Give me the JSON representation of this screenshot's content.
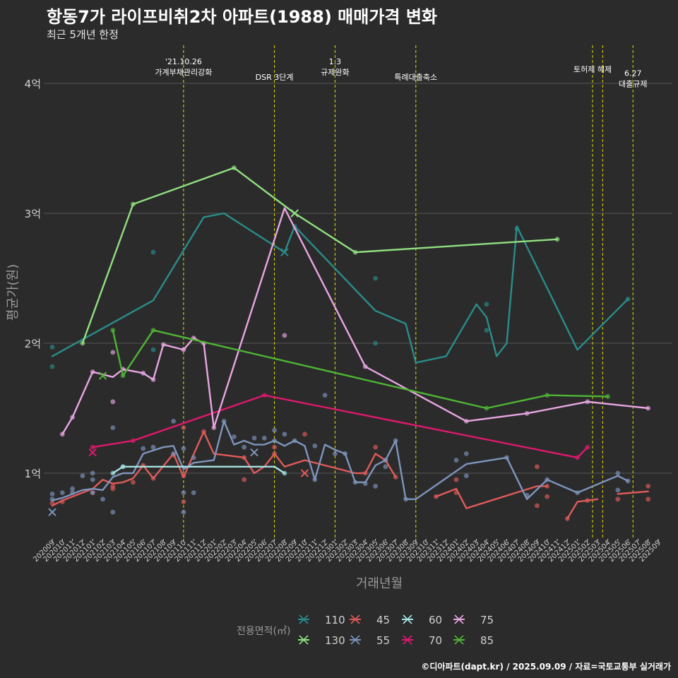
{
  "title": "항동7가 라이프비취2차 아파트(1988) 매매가격 변화",
  "subtitle": "최근 5개년 한정",
  "caption": "©디아파트(dapt.kr) / 2025.09.09 / 자료=국토교통부 실거래가",
  "colors": {
    "background": "#2b2b2b",
    "grid": "#555555",
    "event_line": "#e0e000",
    "axis_text": "#d0d0d0",
    "axis_title": "#9a9a9a"
  },
  "chart_data": {
    "type": "line",
    "title": "항동7가 라이프비취2차 아파트(1988) 매매가격 변화",
    "xlabel": "거래년월",
    "ylabel": "평균가(원)",
    "ylim": [
      0.5,
      4.3
    ],
    "y_ticks": [
      {
        "value": 1,
        "label": "1억"
      },
      {
        "value": 2,
        "label": "2억"
      },
      {
        "value": 3,
        "label": "3억"
      },
      {
        "value": 4,
        "label": "4억"
      }
    ],
    "x_ticks": [
      "202009",
      "202010",
      "202011",
      "202012",
      "202101",
      "202102",
      "202103",
      "202104",
      "202105",
      "202106",
      "202107",
      "202108",
      "202109",
      "202110",
      "202111",
      "202112",
      "202201",
      "202202",
      "202203",
      "202204",
      "202205",
      "202206",
      "202207",
      "202208",
      "202209",
      "202210",
      "202211",
      "202212",
      "202301",
      "202302",
      "202303",
      "202304",
      "202305",
      "202306",
      "202307",
      "202308",
      "202309",
      "202310",
      "202311",
      "202312",
      "202401",
      "202402",
      "202403",
      "202404",
      "202405",
      "202406",
      "202407",
      "202408",
      "202409",
      "202410",
      "202411",
      "202412",
      "202501",
      "202502",
      "202503",
      "202504",
      "202505",
      "202506",
      "202507",
      "202508",
      "202509"
    ],
    "events": [
      {
        "month": 13,
        "label": "'21.10.26\n가계부채관리강화",
        "row": 0
      },
      {
        "month": 22,
        "label": "DSR 3단계",
        "row": 2
      },
      {
        "month": 28,
        "label": "1.3\n규제완화",
        "row": 0
      },
      {
        "month": 36,
        "label": "특례대출축소",
        "row": 2
      },
      {
        "month": 53.5,
        "label": "토허제 해제",
        "row": 1
      },
      {
        "month": 54.5,
        "label": "",
        "row": 1
      },
      {
        "month": 57.5,
        "label": "6.27\n대출규제",
        "row": 1.5
      }
    ],
    "legend_title": "전용면적(㎡)",
    "series": [
      {
        "name": "110",
        "color": "#2a8c8a",
        "line": [
          [
            0,
            1.9
          ],
          [
            10,
            2.33
          ],
          [
            15,
            2.97
          ],
          [
            17,
            3.0
          ],
          [
            23,
            2.7
          ],
          [
            24,
            2.9
          ],
          [
            32,
            2.25
          ],
          [
            35,
            2.15
          ],
          [
            36,
            1.85
          ],
          [
            39,
            1.9
          ],
          [
            42,
            2.3
          ],
          [
            43,
            2.2
          ],
          [
            44,
            1.9
          ],
          [
            45,
            2.0
          ],
          [
            46,
            2.9
          ],
          [
            52,
            1.95
          ],
          [
            57,
            2.34
          ]
        ],
        "points": [
          [
            0,
            1.97
          ],
          [
            0,
            1.82
          ],
          [
            10,
            2.7
          ],
          [
            10,
            1.95
          ],
          [
            24,
            2.9
          ],
          [
            32,
            2.5
          ],
          [
            32,
            2.0
          ],
          [
            43,
            2.3
          ],
          [
            43,
            2.1
          ],
          [
            46,
            2.88
          ],
          [
            57,
            2.34
          ]
        ],
        "crosses": [
          [
            23,
            2.7
          ]
        ]
      },
      {
        "name": "130",
        "color": "#90e080",
        "line": [
          [
            3,
            2.0
          ],
          [
            8,
            3.07
          ],
          [
            18,
            3.35
          ],
          [
            24,
            3.0
          ],
          [
            30,
            2.7
          ],
          [
            50,
            2.8
          ]
        ],
        "points": [
          [
            3,
            2.0
          ],
          [
            8,
            3.07
          ],
          [
            18,
            3.35
          ],
          [
            30,
            2.7
          ],
          [
            50,
            2.8
          ]
        ],
        "crosses": [
          [
            24,
            3.0
          ]
        ]
      },
      {
        "name": "45",
        "color": "#e05a5a",
        "line": [
          [
            0,
            0.75
          ],
          [
            1,
            0.79
          ],
          [
            4,
            0.88
          ],
          [
            5,
            0.95
          ],
          [
            6,
            0.92
          ],
          [
            7,
            0.93
          ],
          [
            8,
            0.96
          ],
          [
            9,
            1.06
          ],
          [
            10,
            0.96
          ],
          [
            12,
            1.15
          ],
          [
            13,
            0.97
          ],
          [
            15,
            1.32
          ],
          [
            16,
            1.15
          ],
          [
            18,
            1.13
          ],
          [
            19,
            1.12
          ],
          [
            20,
            1.0
          ],
          [
            21,
            1.05
          ],
          [
            22,
            1.15
          ],
          [
            23,
            1.05
          ],
          [
            25,
            1.1
          ],
          [
            30,
            1.0
          ],
          [
            31,
            1.0
          ],
          [
            32,
            1.15
          ],
          [
            33,
            1.1
          ],
          [
            34,
            0.97
          ]
        ],
        "points": [
          [
            0,
            0.77
          ],
          [
            1,
            0.78
          ],
          [
            4,
            0.85
          ],
          [
            6,
            0.9
          ],
          [
            6,
            0.88
          ],
          [
            8,
            0.93
          ],
          [
            9,
            1.06
          ],
          [
            10,
            0.96
          ],
          [
            12,
            1.14
          ],
          [
            13,
            1.35
          ],
          [
            13,
            0.98
          ],
          [
            13,
            0.78
          ],
          [
            15,
            1.32
          ],
          [
            19,
            0.95
          ],
          [
            19,
            1.12
          ],
          [
            22,
            1.2
          ],
          [
            22,
            1.15
          ],
          [
            25,
            1.3
          ],
          [
            31,
            1.0
          ],
          [
            32,
            1.2
          ],
          [
            33,
            1.1
          ],
          [
            34,
            0.97
          ],
          [
            38,
            0.82
          ],
          [
            40,
            0.95
          ],
          [
            40,
            0.85
          ],
          [
            48,
            1.05
          ],
          [
            48,
            0.75
          ],
          [
            49,
            0.9
          ],
          [
            49,
            0.82
          ],
          [
            51,
            0.65
          ],
          [
            53,
            0.79
          ],
          [
            56,
            0.8
          ],
          [
            59,
            0.9
          ],
          [
            59,
            0.8
          ]
        ],
        "crosses": [
          [
            25,
            1.0
          ]
        ],
        "line2": [
          [
            38,
            0.82
          ],
          [
            40,
            0.88
          ],
          [
            41,
            0.73
          ],
          [
            48,
            0.9
          ],
          [
            49,
            0.9
          ]
        ],
        "line3": [
          [
            51,
            0.65
          ],
          [
            52,
            0.78
          ],
          [
            54,
            0.8
          ]
        ],
        "line4": [
          [
            56,
            0.84
          ],
          [
            59,
            0.86
          ]
        ]
      },
      {
        "name": "55",
        "color": "#7e95bd",
        "line": [
          [
            0,
            0.79
          ],
          [
            1,
            0.81
          ],
          [
            2,
            0.84
          ],
          [
            3,
            0.87
          ],
          [
            4,
            0.88
          ],
          [
            5,
            0.87
          ],
          [
            6,
            0.97
          ],
          [
            7,
            1.0
          ],
          [
            8,
            1.0
          ],
          [
            9,
            1.15
          ],
          [
            11,
            1.2
          ],
          [
            12,
            1.21
          ],
          [
            13,
            1.03
          ],
          [
            14,
            1.08
          ],
          [
            16,
            1.1
          ],
          [
            17,
            1.4
          ],
          [
            18,
            1.22
          ],
          [
            19,
            1.25
          ],
          [
            20,
            1.22
          ],
          [
            21,
            1.22
          ],
          [
            22,
            1.25
          ],
          [
            23,
            1.21
          ],
          [
            24,
            1.25
          ],
          [
            25,
            1.21
          ],
          [
            26,
            0.95
          ],
          [
            27,
            1.22
          ],
          [
            28,
            1.18
          ],
          [
            29,
            1.15
          ],
          [
            30,
            0.93
          ],
          [
            31,
            0.93
          ],
          [
            32,
            1.06
          ],
          [
            33,
            1.1
          ],
          [
            34,
            1.25
          ],
          [
            35,
            0.8
          ],
          [
            36,
            0.8
          ],
          [
            41,
            1.07
          ],
          [
            45,
            1.12
          ],
          [
            47,
            0.8
          ],
          [
            49,
            0.95
          ],
          [
            52,
            0.85
          ],
          [
            56,
            0.98
          ],
          [
            57,
            0.94
          ]
        ],
        "points": [
          [
            0,
            0.84
          ],
          [
            0,
            0.8
          ],
          [
            1,
            0.85
          ],
          [
            2,
            0.88
          ],
          [
            2,
            0.85
          ],
          [
            3,
            0.98
          ],
          [
            4,
            1.0
          ],
          [
            4,
            0.95
          ],
          [
            4,
            0.85
          ],
          [
            5,
            0.8
          ],
          [
            6,
            1.35
          ],
          [
            6,
            0.7
          ],
          [
            7,
            1.05
          ],
          [
            9,
            1.19
          ],
          [
            10,
            1.2
          ],
          [
            12,
            1.4
          ],
          [
            12,
            1.15
          ],
          [
            13,
            0.85
          ],
          [
            13,
            0.7
          ],
          [
            13,
            1.19
          ],
          [
            14,
            0.85
          ],
          [
            14,
            1.12
          ],
          [
            17,
            1.4
          ],
          [
            18,
            1.28
          ],
          [
            19,
            1.2
          ],
          [
            20,
            1.27
          ],
          [
            21,
            1.27
          ],
          [
            22,
            1.33
          ],
          [
            22,
            1.25
          ],
          [
            23,
            1.3
          ],
          [
            24,
            1.25
          ],
          [
            26,
            1.21
          ],
          [
            26,
            0.95
          ],
          [
            27,
            1.6
          ],
          [
            28,
            1.15
          ],
          [
            29,
            1.15
          ],
          [
            30,
            0.93
          ],
          [
            31,
            0.92
          ],
          [
            32,
            0.9
          ],
          [
            33,
            1.1
          ],
          [
            33,
            1.05
          ],
          [
            34,
            1.25
          ],
          [
            35,
            0.8
          ],
          [
            40,
            1.1
          ],
          [
            41,
            1.15
          ],
          [
            41,
            0.98
          ],
          [
            45,
            1.12
          ],
          [
            47,
            0.83
          ],
          [
            49,
            0.95
          ],
          [
            52,
            0.85
          ],
          [
            56,
            1.0
          ],
          [
            56,
            0.87
          ],
          [
            57,
            0.94
          ]
        ],
        "crosses": [
          [
            0,
            0.7
          ],
          [
            20,
            1.16
          ]
        ]
      },
      {
        "name": "60",
        "color": "#a6e3e3",
        "line": [
          [
            6,
            1.0
          ],
          [
            7,
            1.05
          ],
          [
            22,
            1.05
          ],
          [
            23,
            1.0
          ]
        ],
        "points": [
          [
            6,
            1.0
          ],
          [
            7,
            1.05
          ],
          [
            23,
            1.0
          ]
        ],
        "crosses": []
      },
      {
        "name": "70",
        "color": "#e0186e",
        "line": [
          [
            4,
            1.2
          ],
          [
            8,
            1.25
          ],
          [
            21,
            1.6
          ],
          [
            52,
            1.12
          ],
          [
            53,
            1.2
          ]
        ],
        "points": [
          [
            4,
            1.2
          ],
          [
            8,
            1.25
          ],
          [
            21,
            1.6
          ],
          [
            52,
            1.12
          ],
          [
            53,
            1.2
          ]
        ],
        "crosses": [
          [
            4,
            1.16
          ]
        ]
      },
      {
        "name": "75",
        "color": "#e8a6e3",
        "line": [
          [
            1,
            1.3
          ],
          [
            2,
            1.43
          ],
          [
            4,
            1.78
          ],
          [
            5,
            1.76
          ],
          [
            6,
            1.74
          ],
          [
            7,
            1.8
          ],
          [
            9,
            1.77
          ],
          [
            10,
            1.72
          ],
          [
            11,
            1.99
          ],
          [
            13,
            1.95
          ],
          [
            14,
            2.04
          ],
          [
            15,
            2.0
          ],
          [
            16,
            1.35
          ],
          [
            23,
            3.04
          ],
          [
            31,
            1.82
          ],
          [
            41,
            1.4
          ],
          [
            47,
            1.46
          ],
          [
            53,
            1.55
          ],
          [
            59,
            1.5
          ]
        ],
        "points": [
          [
            1,
            1.3
          ],
          [
            2,
            1.43
          ],
          [
            4,
            1.78
          ],
          [
            6,
            1.93
          ],
          [
            6,
            1.55
          ],
          [
            7,
            1.8
          ],
          [
            9,
            1.77
          ],
          [
            10,
            1.72
          ],
          [
            11,
            1.99
          ],
          [
            13,
            1.95
          ],
          [
            14,
            2.04
          ],
          [
            15,
            2.0
          ],
          [
            16,
            1.35
          ],
          [
            23,
            2.06
          ],
          [
            31,
            1.82
          ],
          [
            41,
            1.4
          ],
          [
            47,
            1.46
          ],
          [
            53,
            1.55
          ],
          [
            59,
            1.5
          ]
        ],
        "crosses": []
      },
      {
        "name": "85",
        "color": "#4fb535",
        "line": [
          [
            6,
            2.1
          ],
          [
            7,
            1.75
          ],
          [
            10,
            2.1
          ],
          [
            43,
            1.5
          ],
          [
            49,
            1.6
          ],
          [
            55,
            1.59
          ]
        ],
        "points": [
          [
            6,
            2.1
          ],
          [
            7,
            1.75
          ],
          [
            10,
            2.1
          ],
          [
            43,
            1.5
          ],
          [
            49,
            1.6
          ],
          [
            55,
            1.59
          ]
        ],
        "crosses": [
          [
            5,
            1.75
          ]
        ]
      }
    ]
  }
}
